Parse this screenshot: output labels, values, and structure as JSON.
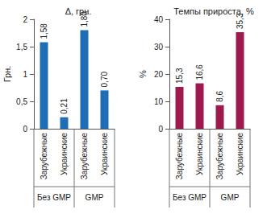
{
  "chart_data": [
    {
      "type": "bar",
      "title": "Δ, грн.",
      "ylabel": "Грн.",
      "categories": [
        "Зарубежные",
        "Украинские",
        "Зарубежные",
        "Украинские"
      ],
      "groups": [
        "Без GMP",
        "GMP"
      ],
      "values": [
        1.58,
        0.21,
        1.8,
        0.7
      ],
      "value_labels": [
        "1,58",
        "0,21",
        "1,80",
        "0,70"
      ],
      "color": "#1e6db5",
      "ylim": [
        0,
        2
      ],
      "yticks": [
        0,
        {
          "value": 0.5,
          "label": "0,5"
        },
        1,
        {
          "value": 1.5,
          "label": "1,5"
        },
        2
      ],
      "grid": false,
      "data_labels": true
    },
    {
      "type": "bar",
      "title": "Темпы прироста, %",
      "ylabel": "%",
      "categories": [
        "Зарубежные",
        "Украинские",
        "Зарубежные",
        "Украинские"
      ],
      "groups": [
        "Без GMP",
        "GMP"
      ],
      "values": [
        15.3,
        16.6,
        8.6,
        35.3
      ],
      "value_labels": [
        "15,3",
        "16,6",
        "8,6",
        "35,3"
      ],
      "color": "#9c1a4c",
      "ylim": [
        0,
        40
      ],
      "yticks": [
        0,
        10,
        20,
        30,
        40
      ],
      "grid": false,
      "data_labels": true
    }
  ]
}
